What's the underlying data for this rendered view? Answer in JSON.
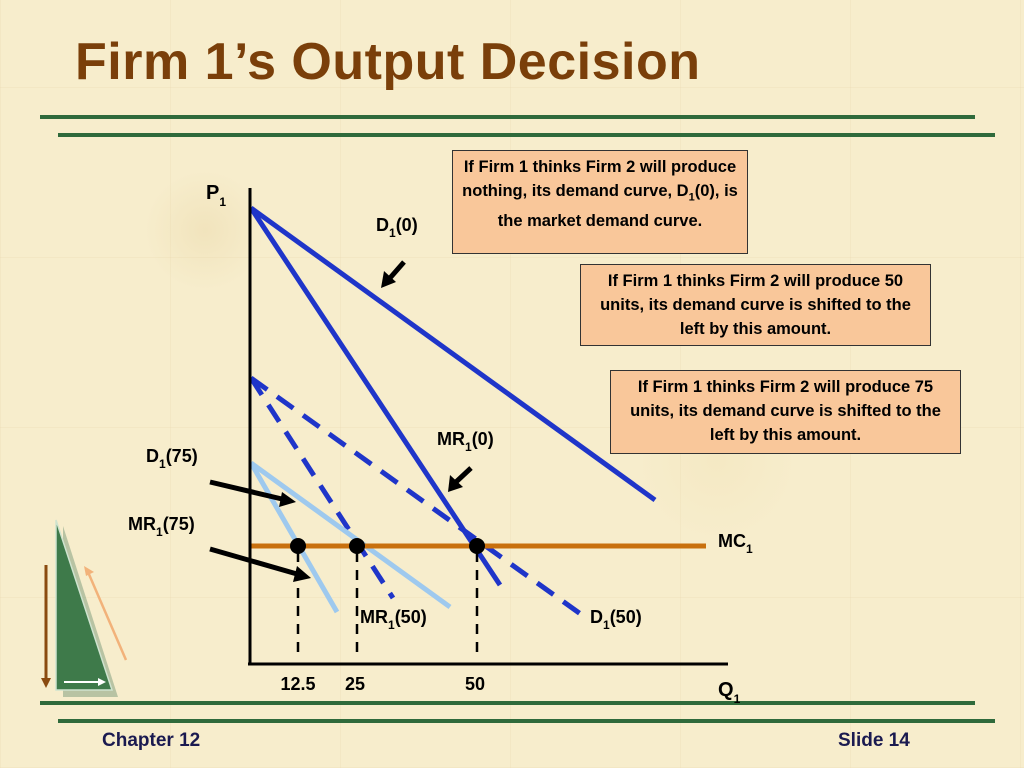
{
  "slide": {
    "title": "Firm 1’s Output Decision",
    "chapter": "Chapter 12",
    "slide_number": "Slide 14"
  },
  "callouts": {
    "c1": {
      "pre": "If Firm 1 thinks Firm 2 will produce nothing, its demand curve, D",
      "sub": "1",
      "post": "(0), is the market demand curve."
    },
    "c2": "If Firm 1 thinks Firm 2 will produce 50 units, its demand curve is shifted to the left by this amount.",
    "c3": "If Firm 1 thinks Firm 2 will produce 75 units, its demand curve is shifted to the left by this amount."
  },
  "axes": {
    "y_label": {
      "main": "P",
      "sub": "1"
    },
    "x_label": {
      "main": "Q",
      "sub": "1"
    }
  },
  "curve_labels": {
    "d0": {
      "pre": "D",
      "sub": "1",
      "post": "(0)"
    },
    "mr0": {
      "pre": "MR",
      "sub": "1",
      "post": "(0)"
    },
    "d75": {
      "pre": "D",
      "sub": "1",
      "post": "(75)"
    },
    "mr75": {
      "pre": "MR",
      "sub": "1",
      "post": "(75)"
    },
    "mr50": {
      "pre": "MR",
      "sub": "1",
      "post": "(50)"
    },
    "d50": {
      "pre": "D",
      "sub": "1",
      "post": "(50)"
    },
    "mc": {
      "pre": "MC",
      "sub": "1",
      "post": ""
    }
  },
  "x_ticks": [
    "12.5",
    "25",
    "50"
  ],
  "colors": {
    "title": "#7a3f0a",
    "rule": "#2f6a3b",
    "demand_0": "#1f35c9",
    "mr_0": "#1f35c9",
    "demand_50": "#1f35c9",
    "mr_50": "#1f35c9",
    "demand_75": "#9ec9ee",
    "mr_75": "#9ec9ee",
    "mc": "#c8700e",
    "callout_fill": "#f9c79a",
    "footer": "#1a1a50"
  },
  "icons": [
    "navigation-triangle-icon"
  ]
}
